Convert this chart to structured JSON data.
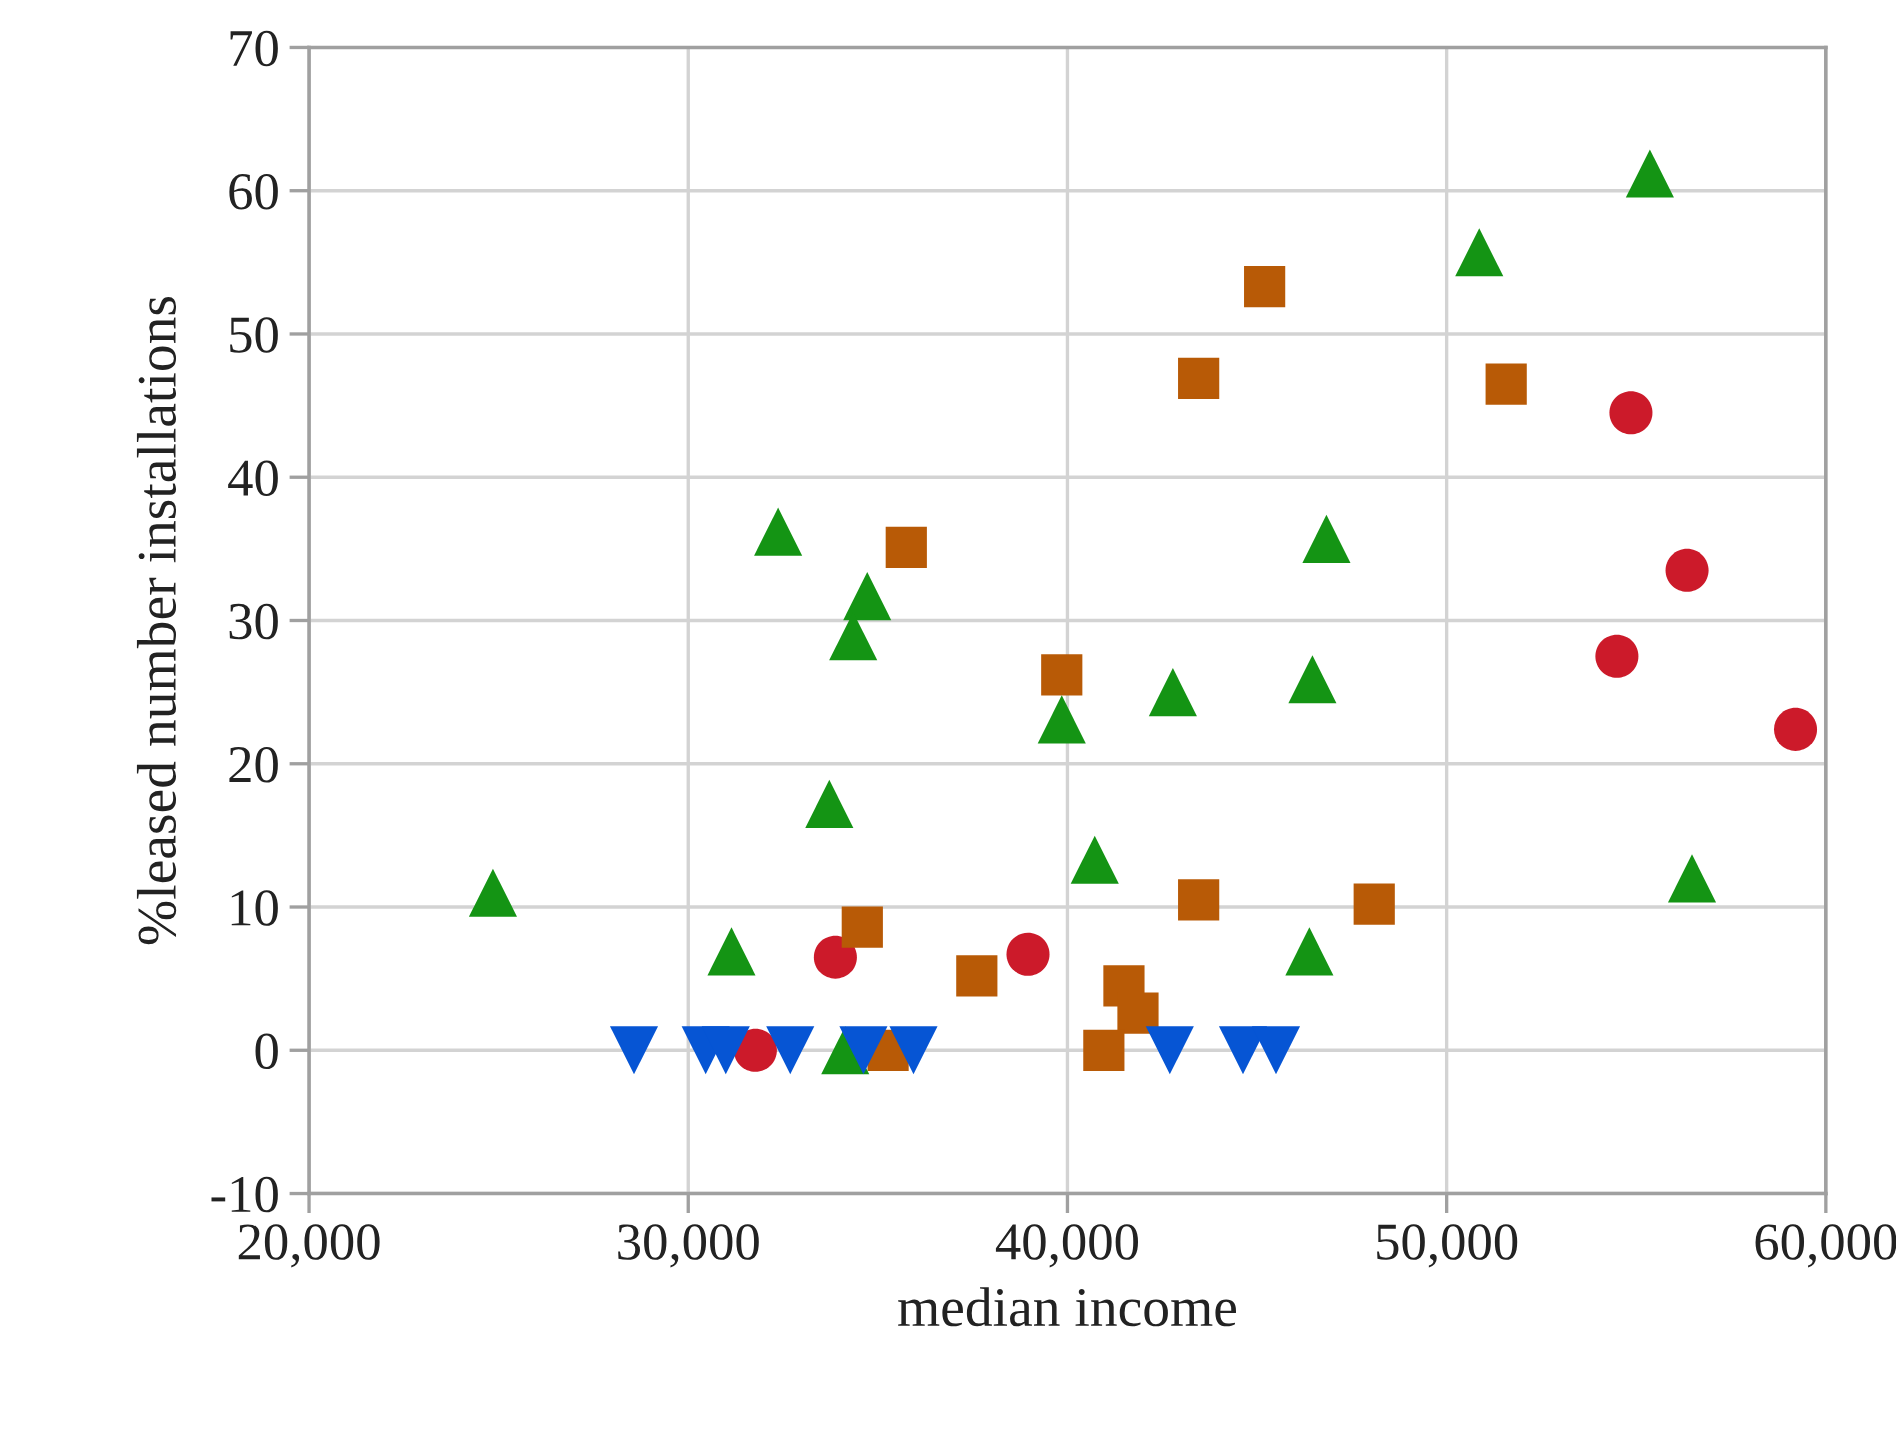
{
  "chart_data": {
    "type": "scatter",
    "xlabel": "median income",
    "ylabel": "%leased number installations",
    "xlim": [
      20000,
      60000
    ],
    "xticks": [
      {
        "value": 20000,
        "label": "20,000"
      },
      {
        "value": 30000,
        "label": "30,000"
      },
      {
        "value": 40000,
        "label": "40,000"
      },
      {
        "value": 50000,
        "label": "50,000"
      },
      {
        "value": 60000,
        "label": "60,000"
      }
    ],
    "ylim": [
      -10,
      70
    ],
    "yticks": [
      -10,
      0,
      10,
      20,
      30,
      40,
      50,
      60,
      70
    ],
    "grid": true,
    "legend": false,
    "series": [
      {
        "color": "#cc1a2a",
        "marker": "circle",
        "x": [
          54860,
          56340,
          54490,
          59200,
          33880,
          38960,
          31770
        ],
        "values": [
          44.5,
          33.5,
          27.5,
          22.4,
          6.5,
          6.7,
          0
        ]
      },
      {
        "color": "#b85a06",
        "marker": "square",
        "x": [
          45200,
          43460,
          51570,
          35750,
          39850,
          34590,
          43460,
          48090,
          37610,
          41490,
          41860,
          40960,
          35270
        ],
        "values": [
          53.3,
          46.9,
          46.5,
          35.1,
          26.2,
          8.6,
          10.5,
          10.2,
          5.2,
          4.5,
          2.6,
          0,
          0
        ]
      },
      {
        "color": "#149414",
        "marker": "triangle",
        "x": [
          55360,
          50860,
          32370,
          46830,
          34720,
          34350,
          46460,
          42780,
          39850,
          33720,
          40720,
          24850,
          56470,
          31140,
          46380,
          34140
        ],
        "values": [
          61.2,
          55.7,
          36.2,
          35.7,
          31.7,
          28.9,
          25.9,
          25.0,
          23.1,
          17.2,
          13.3,
          11.0,
          12.0,
          6.9,
          6.9,
          0
        ]
      },
      {
        "color": "#0655d4",
        "marker": "triangle_down",
        "x": [
          28570,
          30460,
          30990,
          32690,
          34620,
          35940,
          42700,
          44630,
          45500
        ],
        "values": [
          0,
          0,
          0,
          0,
          0,
          0,
          0,
          0,
          0
        ]
      }
    ]
  }
}
